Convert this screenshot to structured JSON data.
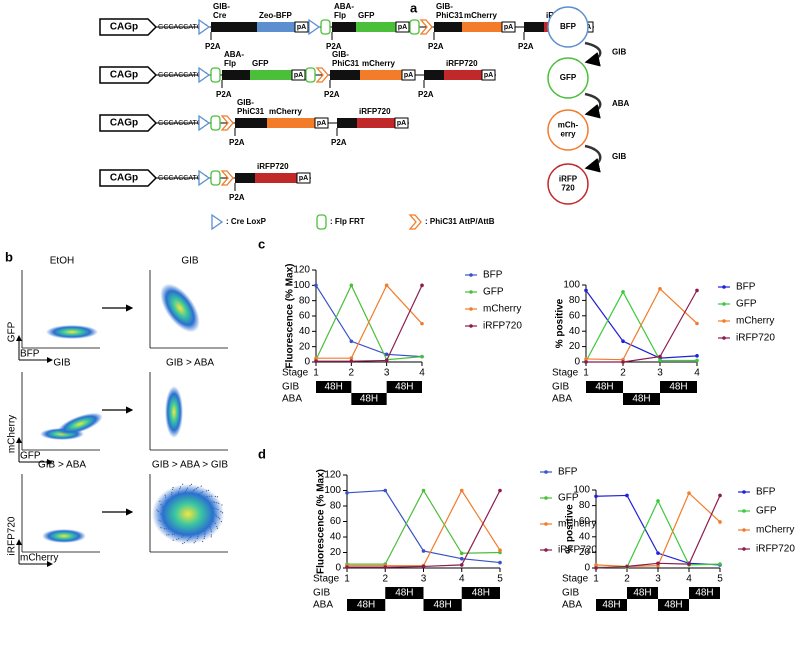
{
  "panel_a": {
    "label": "a",
    "rows": [
      {
        "promoter": "CAGp",
        "kozak": "GCCACCATGG",
        "texts": [
          "GIB-\nCre",
          "P2A",
          "Zeo-BFP",
          "pA",
          "ABA-\nFlp",
          "P2A",
          "GFP",
          "pA",
          "GIB-\nPhiC31",
          "P2A",
          "mCherry",
          "pA",
          "P2A",
          "iRFP720",
          "pA"
        ]
      },
      {
        "promoter": "CAGp",
        "kozak": "GCCACCATGG",
        "texts": [
          "ABA-\nFlp",
          "P2A",
          "GFP",
          "pA",
          "GIB-\nPhiC31",
          "P2A",
          "mCherry",
          "pA",
          "P2A",
          "iRFP720",
          "pA"
        ]
      },
      {
        "promoter": "CAGp",
        "kozak": "GCCACCATGG",
        "texts": [
          "GIB-\nPhiC31",
          "P2A",
          "mCherry",
          "pA",
          "P2A",
          "iRFP720",
          "pA"
        ]
      },
      {
        "promoter": "CAGp",
        "kozak": "GCCACCATGG",
        "texts": [
          "P2A",
          "iRFP720",
          "pA"
        ]
      }
    ],
    "key": [
      ": Cre LoxP",
      ": Flp FRT",
      ": PhiC31 AttP/AttB"
    ],
    "states": [
      {
        "label": "BFP",
        "color": "#5b8fd0"
      },
      {
        "label": "GFP",
        "color": "#4bbf3a"
      },
      {
        "label": "mCh-\nerry",
        "color": "#f27c2a"
      },
      {
        "label": "iRFP\n720",
        "color": "#c0282a"
      }
    ],
    "transitions": [
      "GIB",
      "ABA",
      "GIB"
    ]
  },
  "panel_b": {
    "label": "b",
    "plots": [
      {
        "title": "EtOH",
        "ylabel": "GFP",
        "xlabel": "BFP"
      },
      {
        "title": "GIB"
      },
      {
        "title": "GIB",
        "ylabel": "mCherry",
        "xlabel": "GFP"
      },
      {
        "title": "GIB > ABA"
      },
      {
        "title": "GIB > ABA",
        "ylabel": "iRFP720",
        "xlabel": "mCherry"
      },
      {
        "title": "GIB > ABA > GIB"
      }
    ]
  },
  "panel_c": {
    "label": "c"
  },
  "panel_d": {
    "label": "d"
  },
  "chart_data": [
    {
      "type": "line",
      "ylabel": "Fluorescence (% Max)",
      "xlabel": "Stage",
      "x": [
        1,
        2,
        3,
        4
      ],
      "xlim": [
        1,
        4
      ],
      "xticks": [
        1,
        2,
        3,
        4
      ],
      "ylim": [
        0,
        120
      ],
      "yticks": [
        0,
        20,
        40,
        60,
        80,
        100,
        120
      ],
      "series": [
        {
          "name": "BFP",
          "color": "#3852c8",
          "values": [
            100,
            27,
            10,
            7
          ]
        },
        {
          "name": "GFP",
          "color": "#4bbf3a",
          "values": [
            3,
            100,
            3,
            7
          ]
        },
        {
          "name": "mCherry",
          "color": "#f27c2a",
          "values": [
            5,
            5,
            100,
            50
          ]
        },
        {
          "name": "iRFP720",
          "color": "#8c1c4e",
          "values": [
            1,
            1,
            2,
            100
          ]
        }
      ],
      "treatments": [
        {
          "label": "GIB",
          "boxes": [
            {
              "start": 1,
              "end": 2,
              "label": "48H"
            },
            {
              "start": 3,
              "end": 4,
              "label": "48H"
            }
          ]
        },
        {
          "label": "ABA",
          "boxes": [
            {
              "start": 2,
              "end": 3,
              "label": "48H"
            }
          ]
        }
      ]
    },
    {
      "type": "line",
      "ylabel": "% positive",
      "xlabel": "Stage",
      "x": [
        1,
        2,
        3,
        4
      ],
      "xlim": [
        1,
        4
      ],
      "xticks": [
        1,
        2,
        3,
        4
      ],
      "ylim": [
        0,
        100
      ],
      "yticks": [
        0,
        20,
        40,
        60,
        80,
        100
      ],
      "series": [
        {
          "name": "BFP",
          "color": "#2020d8",
          "values": [
            93,
            27,
            5,
            8
          ]
        },
        {
          "name": "GFP",
          "color": "#3cc83c",
          "values": [
            1,
            91,
            2,
            2
          ]
        },
        {
          "name": "mCherry",
          "color": "#f27c2a",
          "values": [
            4,
            3,
            95,
            50
          ]
        },
        {
          "name": "iRFP720",
          "color": "#8c1c4e",
          "values": [
            0,
            0,
            7,
            93
          ]
        }
      ],
      "treatments": [
        {
          "label": "GIB",
          "boxes": [
            {
              "start": 1,
              "end": 2,
              "label": "48H"
            },
            {
              "start": 3,
              "end": 4,
              "label": "48H"
            }
          ]
        },
        {
          "label": "ABA",
          "boxes": [
            {
              "start": 2,
              "end": 3,
              "label": "48H"
            }
          ]
        }
      ]
    },
    {
      "type": "line",
      "ylabel": "Fluorescence (% Max)",
      "xlabel": "Stage",
      "x": [
        1,
        2,
        3,
        4,
        5
      ],
      "xlim": [
        1,
        5
      ],
      "xticks": [
        1,
        2,
        3,
        4,
        5
      ],
      "ylim": [
        0,
        120
      ],
      "yticks": [
        0,
        20,
        40,
        60,
        80,
        100,
        120
      ],
      "series": [
        {
          "name": "BFP",
          "color": "#3852c8",
          "values": [
            97,
            100,
            22,
            12,
            7
          ]
        },
        {
          "name": "GFP",
          "color": "#4bbf3a",
          "values": [
            5,
            5,
            100,
            19,
            20
          ]
        },
        {
          "name": "mCherry",
          "color": "#f27c2a",
          "values": [
            3,
            3,
            3,
            100,
            23
          ]
        },
        {
          "name": "iRFP720",
          "color": "#8c1c4e",
          "values": [
            1,
            1,
            2,
            4,
            100
          ]
        }
      ],
      "treatments": [
        {
          "label": "GIB",
          "boxes": [
            {
              "start": 2,
              "end": 3,
              "label": "48H"
            },
            {
              "start": 4,
              "end": 5,
              "label": "48H"
            }
          ]
        },
        {
          "label": "ABA",
          "boxes": [
            {
              "start": 1,
              "end": 2,
              "label": "48H"
            },
            {
              "start": 3,
              "end": 4,
              "label": "48H"
            }
          ]
        }
      ]
    },
    {
      "type": "line",
      "ylabel": "% positive",
      "xlabel": "Stage",
      "x": [
        1,
        2,
        3,
        4,
        5
      ],
      "xlim": [
        1,
        5
      ],
      "xticks": [
        1,
        2,
        3,
        4,
        5
      ],
      "ylim": [
        0,
        100
      ],
      "yticks": [
        0,
        20,
        40,
        60,
        80,
        100
      ],
      "series": [
        {
          "name": "BFP",
          "color": "#2020d8",
          "values": [
            92,
            93,
            19,
            6,
            4
          ]
        },
        {
          "name": "GFP",
          "color": "#3cc83c",
          "values": [
            1,
            1,
            86,
            4,
            5
          ]
        },
        {
          "name": "mCherry",
          "color": "#f27c2a",
          "values": [
            4,
            2,
            3,
            96,
            59
          ]
        },
        {
          "name": "iRFP720",
          "color": "#8c1c4e",
          "values": [
            0,
            2,
            6,
            5,
            93
          ]
        }
      ],
      "treatments": [
        {
          "label": "GIB",
          "boxes": [
            {
              "start": 2,
              "end": 3,
              "label": "48H"
            },
            {
              "start": 4,
              "end": 5,
              "label": "48H"
            }
          ]
        },
        {
          "label": "ABA",
          "boxes": [
            {
              "start": 1,
              "end": 2,
              "label": "48H"
            },
            {
              "start": 3,
              "end": 4,
              "label": "48H"
            }
          ]
        }
      ]
    }
  ]
}
